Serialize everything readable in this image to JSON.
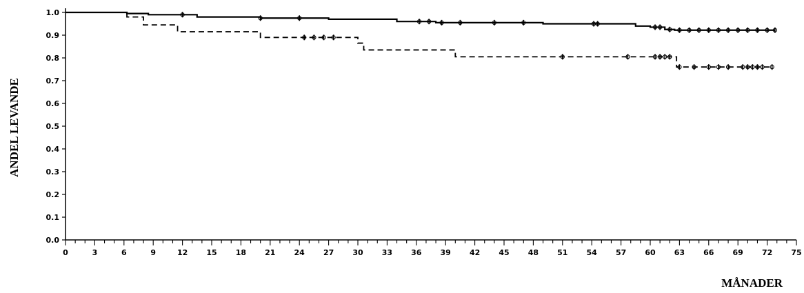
{
  "chart_data": {
    "type": "line",
    "title": "",
    "xlabel": "MÅNADER",
    "ylabel": "ANDEL LEVANDE",
    "xlim": [
      0,
      75
    ],
    "ylim": [
      0.0,
      1.0
    ],
    "x_tick_labels": [
      "0",
      "3",
      "6",
      "9",
      "12",
      "15",
      "18",
      "21",
      "24",
      "27",
      "30",
      "33",
      "36",
      "39",
      "42",
      "45",
      "48",
      "51",
      "54",
      "57",
      "60",
      "63",
      "66",
      "69",
      "72",
      "75"
    ],
    "y_tick_labels": [
      "1.0",
      "0.9",
      "0.8",
      "0.7",
      "0.6",
      "0.5",
      "0.4",
      "0.3",
      "0.2",
      "0.1",
      "0.0"
    ],
    "x_ticks": [
      0,
      3,
      6,
      9,
      12,
      15,
      18,
      21,
      24,
      27,
      30,
      33,
      36,
      39,
      42,
      45,
      48,
      51,
      54,
      57,
      60,
      63,
      66,
      69,
      72,
      75
    ],
    "y_ticks": [
      1.0,
      0.9,
      0.8,
      0.7,
      0.6,
      0.5,
      0.4,
      0.3,
      0.2,
      0.1,
      0.0
    ],
    "grid": false,
    "legend": "none",
    "series": [
      {
        "style": "solid",
        "color": "#000000",
        "steps": [
          [
            0,
            1.0
          ],
          [
            6.3,
            0.995
          ],
          [
            8.5,
            0.99
          ],
          [
            13.5,
            0.98
          ],
          [
            20,
            0.975
          ],
          [
            27,
            0.97
          ],
          [
            34,
            0.96
          ],
          [
            38,
            0.955
          ],
          [
            41,
            0.955
          ],
          [
            49,
            0.95
          ],
          [
            54,
            0.95
          ],
          [
            58.5,
            0.94
          ],
          [
            60,
            0.935
          ],
          [
            61.5,
            0.925
          ],
          [
            62.5,
            0.922
          ],
          [
            72.8,
            0.922
          ]
        ],
        "censored": [
          12,
          20,
          24,
          36.3,
          37.3,
          38.6,
          40.5,
          44,
          47,
          54.2,
          54.6,
          60.5,
          61,
          62,
          63,
          64,
          65,
          66,
          67,
          68,
          69,
          70,
          71,
          72,
          72.8
        ]
      },
      {
        "style": "dashed",
        "color": "#000000",
        "steps": [
          [
            0,
            1.0
          ],
          [
            6.3,
            0.98
          ],
          [
            8,
            0.945
          ],
          [
            11.5,
            0.915
          ],
          [
            20,
            0.89
          ],
          [
            30,
            0.865
          ],
          [
            30.6,
            0.835
          ],
          [
            40,
            0.805
          ],
          [
            62.7,
            0.76
          ],
          [
            72.5,
            0.76
          ]
        ],
        "censored": [
          24.5,
          25.5,
          26.5,
          27.5,
          51,
          57.7,
          60.5,
          61,
          61.5,
          62,
          63,
          64.5,
          66,
          67,
          68,
          69.5,
          70,
          70.5,
          71,
          71.5,
          72.5
        ]
      }
    ]
  }
}
